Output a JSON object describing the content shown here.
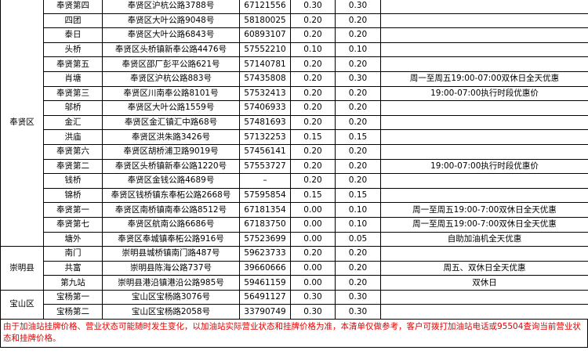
{
  "table": {
    "groups": [
      {
        "district": "奉贤区",
        "rows": [
          [
            "奉贤第四",
            "奉贤区沪杭公路3788号",
            "67121556",
            "0.30",
            "0.30"
          ],
          [
            "四团",
            "奉贤区大叶公路9048号",
            "58180025",
            "0.20",
            "0.20"
          ],
          [
            "泰日",
            "奉贤区大叶公路6843号",
            "60893107",
            "0.20",
            "0.20"
          ],
          [
            "头桥",
            "奉贤区头桥镇新奉公路4476号",
            "57552210",
            "0.10",
            "0.10"
          ],
          [
            "奉贤第五",
            "奉贤区邵厂彭平公路621号",
            "57140781",
            "0.20",
            "0.20"
          ],
          [
            "肖塘",
            "奉贤区沪杭公路883号",
            "57435808",
            "0.20",
            "0.30",
            "周一至周五19:00-07:00双休日全天优惠"
          ],
          [
            "奉贤第三",
            "奉贤区川南奉公路8101号",
            "57532413",
            "0.20",
            "0.20",
            "19:00-07:00执行时段优惠价"
          ],
          [
            "邬桥",
            "奉贤区大叶公路1559号",
            "57406933",
            "0.20",
            "0.20"
          ],
          [
            "金汇",
            "奉贤区金汇镇汇中路68号",
            "57481693",
            "0.20",
            "0.20"
          ],
          [
            "洪庙",
            "奉贤区洪朱路3426号",
            "57132253",
            "0.15",
            "0.15"
          ],
          [
            "奉贤第六",
            "奉贤区胡桥浦卫路9019号",
            "57456141",
            "0.20",
            "0.20"
          ],
          [
            "奉贤第二",
            "奉贤区头桥镇新奉公路1220号",
            "57553727",
            "0.20",
            "0.20",
            "19:00-07:00执行时段优惠价"
          ],
          [
            "钱桥",
            "奉贤区金钱公路4689号",
            "–",
            "0.20",
            "0.20"
          ],
          [
            "锦桥",
            "奉贤区钱桥镇东奉柘公路2668号",
            "57595854",
            "0.15",
            "0.15"
          ],
          [
            "奉贤第一",
            "奉贤区南桥镇南奉公路8512号",
            "67181354",
            "0.00",
            "0.10",
            "周一至周五19:00-7:00双休日全天优惠"
          ],
          [
            "奉贤第七",
            "奉贤区航南公路6686号",
            "67183750",
            "0.00",
            "0.10",
            "周一至周五19:00-7:00双休日全天优惠"
          ],
          [
            "塘外",
            "奉贤区奉城镇奉柘公路916号",
            "57523699",
            "0.00",
            "0.05",
            "自助加油机全天优惠"
          ]
        ]
      },
      {
        "district": "崇明县",
        "rows": [
          [
            "南门",
            "崇明县城桥镇南门路487号",
            "59623733",
            "0.20",
            "0.20"
          ],
          [
            "共富",
            "崇明县陈海公路737号",
            "39660666",
            "0.00",
            "0.20",
            "周五、双休日全天优惠"
          ],
          [
            "第九站",
            "崇明县港沿镇港沿公路985号",
            "59461159",
            "0.00",
            "0.20",
            "双休日"
          ]
        ]
      },
      {
        "district": "宝山区",
        "rows": [
          [
            "宝杨第一",
            "宝山区宝杨路3076号",
            "56491127",
            "0.30",
            "0.30"
          ],
          [
            "宝杨第二",
            "宝山区宝杨路2058号",
            "33790749",
            "0.30",
            "0.30"
          ]
        ]
      }
    ],
    "footer": "由于加油站挂牌价格、营业状态可能随时发生变化，以加油站实际营业状态和挂牌价格为准，本清单仅做参考，客户可拨打加油站电话或95504查询当前营业状态和挂牌价格。"
  }
}
